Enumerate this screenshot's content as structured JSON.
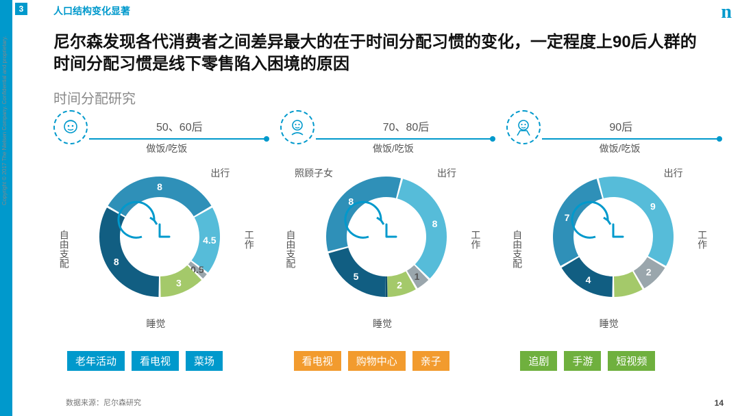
{
  "section": {
    "number": "3",
    "title": "人口结构变化显著"
  },
  "logo": "n",
  "headline": "尼尔森发现各代消费者之间差异最大的在于时间分配习惯的变化，一定程度上90后人群的时间分配习惯是线下零售陷入困境的原因",
  "subtitle": "时间分配研究",
  "source": "数据来源：尼尔森研究",
  "page": "14",
  "copyright": "Copyright © 2017 The Nielsen Company. Confidential and proprietary.",
  "palette": {
    "brand": "#0099cc",
    "segs": {
      "free": "#115e82",
      "sleep": "#2f90b8",
      "work": "#56bcd9",
      "travel": "#9aa6ac",
      "cook": "#a4c96a",
      "half": "#cfd6db",
      "child": "#0d4d6b"
    }
  },
  "donut": {
    "outerR": 88,
    "innerR": 58,
    "gapDeg": 2
  },
  "generations": [
    {
      "label": "50、60后",
      "icon": "elder",
      "tag_color": "#0099cc",
      "segments": [
        {
          "key": "free",
          "name": "自由支配",
          "value": 8,
          "color": "#115e82",
          "namePos": "L"
        },
        {
          "key": "sleep",
          "name": "睡觉",
          "value": 8,
          "color": "#2f90b8",
          "namePos": "B"
        },
        {
          "key": "work",
          "name": "工作",
          "value": 4.5,
          "color": "#56bcd9",
          "namePos": "R"
        },
        {
          "key": "travel",
          "name": "出行",
          "value": 0.5,
          "color": "#9aa6ac",
          "namePos": "TR",
          "textColor": "#555"
        },
        {
          "key": "cook",
          "name": "做饭/吃饭",
          "value": 3,
          "color": "#a4c96a",
          "namePos": "T"
        }
      ],
      "tags": [
        "老年活动",
        "看电视",
        "菜场"
      ]
    },
    {
      "label": "70、80后",
      "icon": "adult",
      "tag_color": "#f29b2e",
      "segments": [
        {
          "key": "free",
          "name": "自由支配",
          "value": 5,
          "color": "#115e82",
          "namePos": "L"
        },
        {
          "key": "sleep",
          "name": "睡觉",
          "value": 8,
          "color": "#2f90b8",
          "namePos": "B"
        },
        {
          "key": "work",
          "name": "工作",
          "value": 8,
          "color": "#56bcd9",
          "namePos": "R"
        },
        {
          "key": "travel",
          "name": "出行",
          "value": 1,
          "color": "#9aa6ac",
          "namePos": "TR",
          "textColor": "#555"
        },
        {
          "key": "cook",
          "name": "做饭/吃饭",
          "value": 2,
          "color": "#a4c96a",
          "namePos": "T"
        },
        {
          "key": "child",
          "name": "照顾子女",
          "value": 0.01,
          "color": "#0d4d6b",
          "namePos": "TL",
          "hideValue": true
        }
      ],
      "tags": [
        "看电视",
        "购物中心",
        "亲子"
      ]
    },
    {
      "label": "90后",
      "icon": "young",
      "tag_color": "#6fb03e",
      "segments": [
        {
          "key": "free",
          "name": "自由支配",
          "value": 4,
          "color": "#115e82",
          "namePos": "L"
        },
        {
          "key": "sleep",
          "name": "睡觉",
          "value": 7,
          "color": "#2f90b8",
          "namePos": "B"
        },
        {
          "key": "work",
          "name": "工作",
          "value": 9,
          "color": "#56bcd9",
          "namePos": "R"
        },
        {
          "key": "travel",
          "name": "出行",
          "value": 2,
          "color": "#9aa6ac",
          "namePos": "TR"
        },
        {
          "key": "cook",
          "name": "做饭/吃饭",
          "value": 2,
          "color": "#a4c96a",
          "namePos": "T",
          "hideValue": true
        }
      ],
      "tags": [
        "追剧",
        "手游",
        "短视频"
      ]
    }
  ]
}
